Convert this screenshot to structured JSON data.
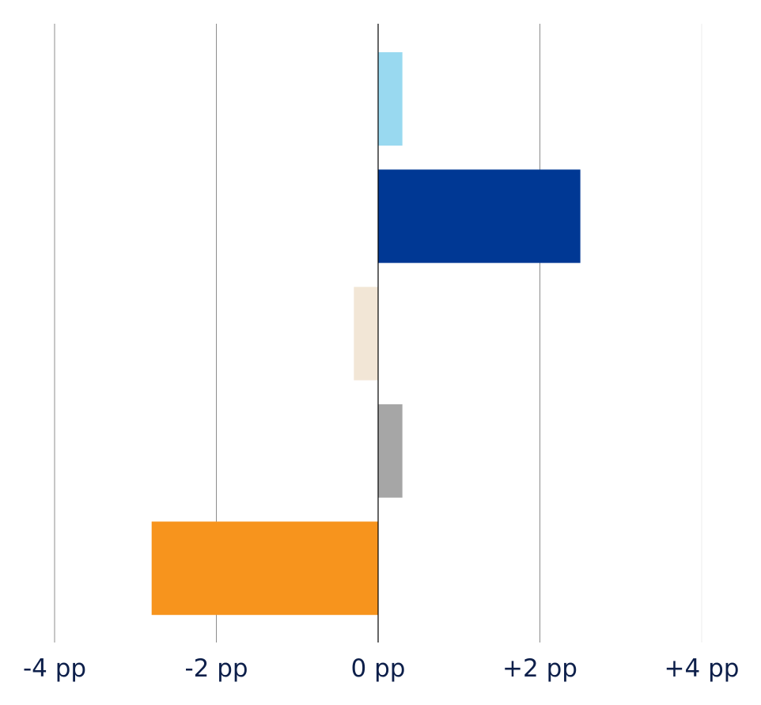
{
  "chart_data": {
    "type": "bar",
    "orientation": "horizontal",
    "categories": [
      "",
      "",
      "",
      "",
      ""
    ],
    "values": [
      0.3,
      2.5,
      -0.3,
      0.3,
      -2.8
    ],
    "colors": [
      "#99d9f0",
      "#003894",
      "#f2e6d6",
      "#a6a6a6",
      "#f7941d"
    ],
    "xlim": [
      -4,
      4
    ],
    "ticks": [
      {
        "value": -4,
        "label": "-4 pp"
      },
      {
        "value": -2,
        "label": "-2 pp"
      },
      {
        "value": 0,
        "label": "0 pp"
      },
      {
        "value": 2,
        "label": "+2 pp"
      },
      {
        "value": 4,
        "label": "+4 pp"
      }
    ],
    "grid": true,
    "title": "",
    "xlabel": "",
    "ylabel": ""
  }
}
